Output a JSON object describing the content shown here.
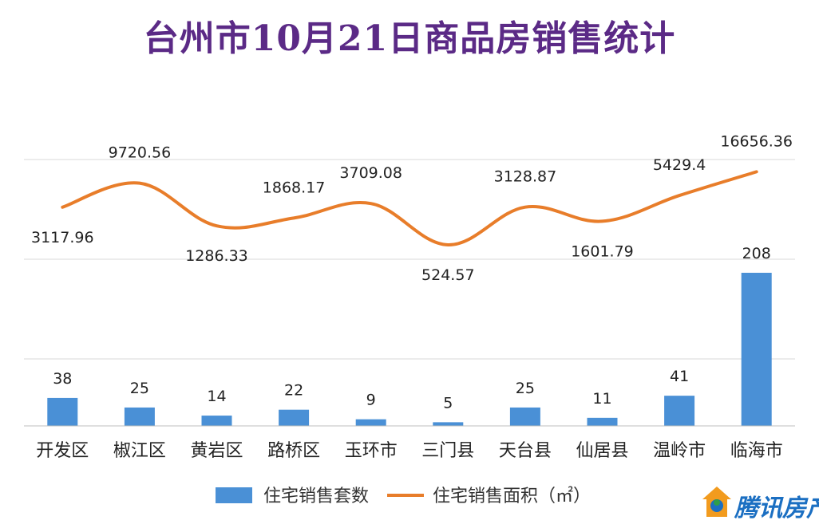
{
  "title": "台州市10月21日商品房销售统计",
  "brand": {
    "logo_text": "腾讯房产",
    "logo_icon": "house-logo-icon"
  },
  "colors": {
    "bar": "#4a90d6",
    "line": "#e87d2a",
    "title": "#5b2a86",
    "grid": "#d9d9d9"
  },
  "chart_data": {
    "type": "bar+line",
    "title": "台州市10月21日商品房销售统计",
    "categories": [
      "开发区",
      "椒江区",
      "黄岩区",
      "路桥区",
      "玉环市",
      "三门县",
      "天台县",
      "仙居县",
      "温岭市",
      "临海市"
    ],
    "series": [
      {
        "name": "住宅销售套数",
        "type": "bar",
        "values": [
          38,
          25,
          14,
          22,
          9,
          5,
          25,
          11,
          41,
          208
        ]
      },
      {
        "name": "住宅销售面积（㎡）",
        "type": "line",
        "values": [
          3117.96,
          9720.56,
          1286.33,
          1868.17,
          3709.08,
          524.57,
          3128.87,
          1601.79,
          5429.4,
          16656.36
        ]
      }
    ],
    "value_labels": {
      "bars": [
        "38",
        "25",
        "14",
        "22",
        "9",
        "5",
        "25",
        "11",
        "41",
        "208"
      ],
      "line": [
        "3117.96",
        "9720.56",
        "1286.33",
        "1868.17",
        "3709.08",
        "524.57",
        "3128.87",
        "1601.79",
        "5429.4",
        "16656.36"
      ]
    },
    "legend": {
      "position": "bottom",
      "entries": [
        "住宅销售套数",
        "住宅销售面积（㎡）"
      ]
    },
    "grid": true
  }
}
